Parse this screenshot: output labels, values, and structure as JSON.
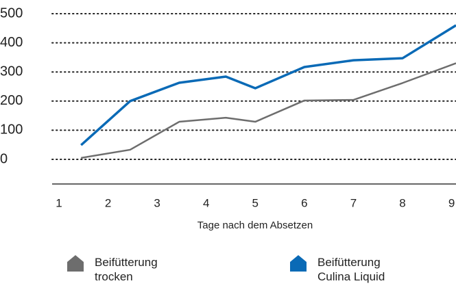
{
  "chart_data": {
    "type": "line",
    "x_label": "Tage nach dem Absetzen",
    "x": [
      1.45,
      2.45,
      3.45,
      4.4,
      5,
      6,
      7,
      8,
      9.09
    ],
    "series": [
      {
        "name": "Beifütterung trocken",
        "color": "#6d6d6d",
        "values": [
          5,
          33,
          129,
          143,
          129,
          202,
          204,
          262,
          330
        ]
      },
      {
        "name": "Beifütterung Culina Liquid",
        "color": "#0a6ab6",
        "values": [
          49,
          200,
          263,
          284,
          244,
          317,
          340,
          347,
          460
        ]
      }
    ],
    "xlim": [
      0.86,
      9.09
    ],
    "xticks": [
      1,
      2,
      3,
      4,
      5,
      6,
      7,
      8,
      9
    ],
    "ylim": [
      0,
      500
    ],
    "yticks": [
      0,
      100,
      200,
      300,
      400,
      500
    ],
    "grid": true
  }
}
